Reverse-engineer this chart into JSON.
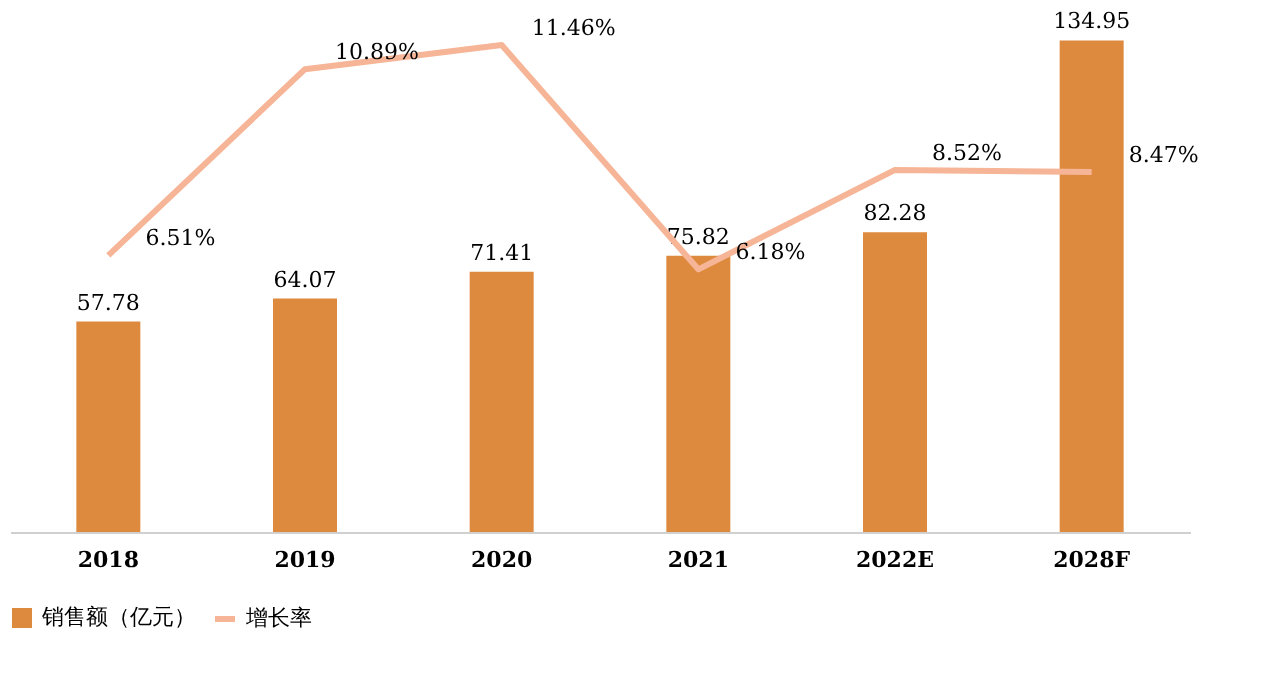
{
  "chart_data": {
    "type": "bar",
    "categories": [
      "2018",
      "2019",
      "2020",
      "2021",
      "2022E",
      "2028F"
    ],
    "series": [
      {
        "name": "销售额（亿元）",
        "color": "#dd8a3e",
        "values": [
          57.78,
          64.07,
          71.41,
          75.82,
          82.28,
          134.95
        ]
      },
      {
        "name": "增长率",
        "type": "line",
        "axis": "y2",
        "color": "#f6b596",
        "values": [
          6.51,
          10.89,
          11.46,
          6.18,
          8.52,
          8.47
        ],
        "value_labels": [
          "6.51%",
          "10.89%",
          "11.46%",
          "6.18%",
          "8.52%",
          "8.47%"
        ]
      }
    ],
    "data_labels": true,
    "tick_labels": "x",
    "grid": false,
    "legend": "bottom",
    "marker": "none",
    "line_style": "solid"
  }
}
